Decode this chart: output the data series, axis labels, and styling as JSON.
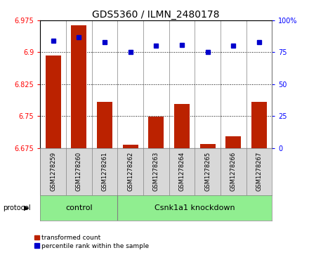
{
  "title": "GDS5360 / ILMN_2480178",
  "samples": [
    "GSM1278259",
    "GSM1278260",
    "GSM1278261",
    "GSM1278262",
    "GSM1278263",
    "GSM1278264",
    "GSM1278265",
    "GSM1278266",
    "GSM1278267"
  ],
  "red_values": [
    6.893,
    6.963,
    6.784,
    6.683,
    6.748,
    6.779,
    6.684,
    6.703,
    6.784
  ],
  "blue_values": [
    84,
    87,
    83,
    75,
    80,
    81,
    75,
    80,
    83
  ],
  "ylim_left": [
    6.675,
    6.975
  ],
  "ylim_right": [
    0,
    100
  ],
  "yticks_left": [
    6.675,
    6.75,
    6.825,
    6.9,
    6.975
  ],
  "yticks_right": [
    0,
    25,
    50,
    75,
    100
  ],
  "ytick_labels_left": [
    "6.675",
    "6.75",
    "6.825",
    "6.9",
    "6.975"
  ],
  "ytick_labels_right": [
    "0",
    "25",
    "50",
    "75",
    "100%"
  ],
  "hlines": [
    6.75,
    6.825,
    6.9
  ],
  "n_control": 3,
  "n_knockdown": 6,
  "control_label": "control",
  "knockdown_label": "Csnk1a1 knockdown",
  "protocol_label": "protocol",
  "legend_red": "transformed count",
  "legend_blue": "percentile rank within the sample",
  "bar_color": "#BB2200",
  "dot_color": "#0000CC",
  "bar_width": 0.6,
  "bg_color": "#ffffff",
  "panel_bg": "#d8d8d8",
  "proto_bg": "#90EE90",
  "title_fontsize": 10,
  "tick_fontsize": 7,
  "sample_fontsize": 6,
  "proto_fontsize": 8
}
